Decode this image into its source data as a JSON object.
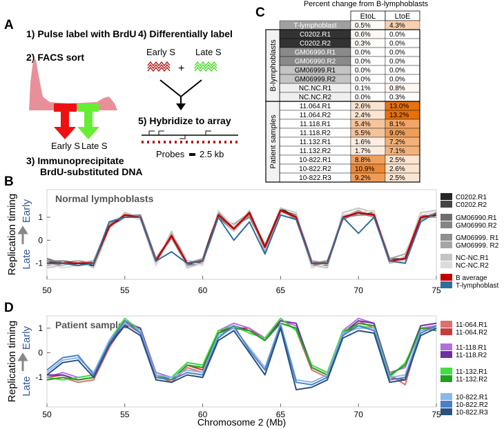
{
  "panel_a": {
    "label": "A",
    "step1": "1) Pulse label with BrdU",
    "step2": "2) FACS sort",
    "step3a": "3) Immunoprecipitate",
    "step3b": "BrdU-substituted DNA",
    "step4": "4) Differentially label",
    "step5": "5) Hybridize to array",
    "sort_early": "Early S",
    "sort_late": "Late S",
    "label_early": "Early S",
    "plus": "+",
    "label_late": "Late S",
    "probes": "Probes",
    "probe_size": "2.5 kb"
  },
  "table": {
    "label": "C",
    "title": "Percent change from B-lymphoblasts",
    "columns": [
      "EtoL",
      "LtoE"
    ],
    "top_row": [
      "T-lymphoblast",
      "0.5%",
      "4.3%"
    ],
    "groups": [
      {
        "label": "B-lymphoblasts",
        "rows": [
          [
            "C0202.R1",
            "0.6%",
            "0.0%"
          ],
          [
            "C0202.R2",
            "0.3%",
            "0.0%"
          ],
          [
            "GM06990.R1",
            "0.0%",
            "0.0%"
          ],
          [
            "GM06990.R2",
            "0.0%",
            "0.0%"
          ],
          [
            "GM06999.R1",
            "0.0%",
            "0.0%"
          ],
          [
            "GM06999.R2",
            "0.0%",
            "0.0%"
          ],
          [
            "NC.NC.R1",
            "0.1%",
            "0.8%"
          ],
          [
            "NC.NC.R2",
            "0.0%",
            "0.3%"
          ]
        ]
      },
      {
        "label": "Patient samples",
        "rows": [
          [
            "11.064.R1",
            "2.6%",
            "13.0%"
          ],
          [
            "11.064.R2",
            "2.4%",
            "13.2%"
          ],
          [
            "11.118.R1",
            "5.4%",
            "8.1%"
          ],
          [
            "11.118.R2",
            "5.5%",
            "9.0%"
          ],
          [
            "11.132.R1",
            "1.6%",
            "7.2%"
          ],
          [
            "11.132.R2",
            "1.7%",
            "7.1%"
          ],
          [
            "10-822.R1",
            "8.8%",
            "2.5%"
          ],
          [
            "10-822.R2",
            "10.9%",
            "2.6%"
          ],
          [
            "10-822.R3",
            "9.2%",
            "2.5%"
          ]
        ]
      }
    ]
  },
  "chart_data": [
    {
      "type": "line",
      "panel": "B",
      "title": "Normal lymphoblasts",
      "y_label": "Replication timing",
      "y_late": "Late",
      "y_early": "Early",
      "x": [
        50,
        51,
        52,
        53,
        54,
        55,
        56,
        57,
        58,
        59,
        60,
        61,
        62,
        63,
        64,
        65,
        66,
        67,
        68,
        69,
        70,
        71,
        72,
        73,
        74,
        75
      ],
      "xlim": [
        50,
        75
      ],
      "xticks": [
        50,
        55,
        60,
        65,
        70,
        75
      ],
      "ylim": [
        -1.7,
        2.2
      ],
      "yticks": [
        -1,
        0,
        1
      ],
      "series": [
        {
          "name": "C0202.R1",
          "color": "#262626",
          "values": [
            -1.0,
            -0.9,
            -1.0,
            -1.1,
            0.7,
            1.1,
            1.0,
            -0.9,
            0.1,
            -1.0,
            -0.9,
            1.1,
            0.6,
            1.2,
            -0.3,
            1.4,
            1.0,
            -1.0,
            -1.1,
            1.0,
            1.3,
            1.0,
            -0.9,
            -0.8,
            1.0,
            1.1
          ]
        },
        {
          "name": "C0202.R2",
          "color": "#454545",
          "values": [
            -0.9,
            -1.0,
            -0.9,
            -1.0,
            0.6,
            1.0,
            1.1,
            -0.8,
            0.2,
            -1.1,
            -0.8,
            1.2,
            0.5,
            1.1,
            -0.2,
            1.3,
            1.1,
            -0.9,
            -1.0,
            1.1,
            1.2,
            1.1,
            -1.0,
            -0.7,
            0.9,
            1.2
          ]
        },
        {
          "name": "GM06990.R1",
          "color": "#6e6e6e",
          "values": [
            -0.8,
            -1.0,
            -1.0,
            -0.9,
            0.7,
            1.1,
            0.9,
            -0.9,
            0.3,
            -0.9,
            -1.0,
            1.0,
            0.4,
            1.2,
            -0.4,
            1.2,
            1.0,
            -1.1,
            -1.0,
            1.0,
            1.1,
            1.2,
            -0.8,
            -0.8,
            1.1,
            1.0
          ]
        },
        {
          "name": "GM06990.R2",
          "color": "#858585",
          "values": [
            -1.0,
            -1.1,
            -0.9,
            -1.0,
            0.5,
            1.2,
            1.0,
            -1.0,
            0.2,
            -1.0,
            -0.9,
            1.1,
            0.6,
            1.0,
            -0.3,
            1.3,
            0.9,
            -1.0,
            -0.9,
            0.9,
            1.2,
            1.0,
            -0.9,
            -0.9,
            1.0,
            1.1
          ]
        },
        {
          "name": "GM06999. R1",
          "color": "#8f8f8f",
          "values": [
            -0.9,
            -0.9,
            -1.1,
            -1.0,
            0.6,
            1.1,
            1.1,
            -0.8,
            0.1,
            -1.1,
            -1.0,
            1.2,
            0.5,
            1.1,
            -0.2,
            1.2,
            1.1,
            -1.0,
            -1.1,
            1.1,
            1.1,
            1.1,
            -1.0,
            -0.8,
            0.9,
            1.2
          ]
        },
        {
          "name": "GM06999. R2",
          "color": "#a6a6a6",
          "values": [
            -1.1,
            -1.0,
            -1.0,
            -0.9,
            0.7,
            1.0,
            1.0,
            -0.9,
            0.3,
            -1.0,
            -0.8,
            1.0,
            0.7,
            1.2,
            -0.5,
            1.3,
            1.0,
            -0.9,
            -1.0,
            1.0,
            1.3,
            1.0,
            -0.8,
            -0.6,
            1.0,
            1.0
          ]
        },
        {
          "name": "NC-NC.R1",
          "color": "#c4c4c4",
          "values": [
            -1.2,
            -1.1,
            -0.9,
            -1.2,
            0.5,
            1.2,
            1.0,
            -1.0,
            0.4,
            -1.2,
            -1.0,
            1.1,
            0.4,
            1.3,
            -0.4,
            1.4,
            1.2,
            -1.1,
            -1.2,
            1.2,
            1.4,
            1.2,
            -1.0,
            -0.7,
            1.2,
            1.3
          ]
        },
        {
          "name": "NC-NC.R2",
          "color": "#dcdcdc",
          "values": [
            -1.0,
            -1.2,
            -1.1,
            -1.0,
            0.8,
            1.1,
            0.9,
            -1.1,
            0.2,
            -0.9,
            -1.1,
            1.3,
            0.6,
            1.2,
            -0.3,
            1.2,
            1.0,
            -1.2,
            -1.0,
            1.1,
            1.2,
            1.3,
            -0.9,
            -0.9,
            1.1,
            1.2
          ]
        },
        {
          "name": "B average",
          "color": "#c00000",
          "values": [
            -1.0,
            -1.0,
            -1.0,
            -1.0,
            0.6,
            1.1,
            1.0,
            -0.9,
            0.2,
            -1.0,
            -0.9,
            1.1,
            0.5,
            1.2,
            -0.3,
            1.3,
            1.0,
            -1.0,
            -1.0,
            1.0,
            1.2,
            1.1,
            -0.9,
            -0.8,
            1.0,
            1.1
          ]
        },
        {
          "name": "T-lymphoblast",
          "color": "#2e6e9e",
          "values": [
            -1.0,
            -1.0,
            -1.1,
            -1.0,
            0.8,
            1.0,
            1.0,
            -0.9,
            -0.5,
            -1.0,
            -0.9,
            1.0,
            0.0,
            0.8,
            -0.6,
            1.1,
            0.9,
            -1.0,
            -1.0,
            1.0,
            0.3,
            1.0,
            -0.9,
            -1.0,
            0.8,
            1.2
          ]
        }
      ]
    },
    {
      "type": "line",
      "panel": "D",
      "title": "Patient samples",
      "y_label": "Replication timing",
      "y_late": "Late",
      "y_early": "Early",
      "x_label": "Chromosome 2 (Mb)",
      "x": [
        50,
        51,
        52,
        53,
        54,
        55,
        56,
        57,
        58,
        59,
        60,
        61,
        62,
        63,
        64,
        65,
        66,
        67,
        68,
        69,
        70,
        71,
        72,
        73,
        74,
        75
      ],
      "xlim": [
        50,
        75
      ],
      "xticks": [
        50,
        55,
        60,
        65,
        70,
        75
      ],
      "ylim": [
        -2.2,
        1.5
      ],
      "yticks": [
        -1,
        0,
        1
      ],
      "series": [
        {
          "name": "11-064.R1",
          "color": "#e07070",
          "values": [
            -1.1,
            -1.0,
            -1.2,
            -1.1,
            0.2,
            1.2,
            0.8,
            -0.9,
            -1.2,
            -0.6,
            -0.8,
            0.8,
            1.1,
            0.9,
            0.6,
            1.4,
            0.9,
            -0.7,
            -1.0,
            0.8,
            1.3,
            1.0,
            -0.9,
            -1.3,
            0.9,
            1.1
          ]
        },
        {
          "name": "11-064.R2",
          "color": "#c83c3c",
          "values": [
            -1.0,
            -0.9,
            -1.1,
            -1.0,
            0.3,
            1.3,
            0.9,
            -1.0,
            -1.1,
            -0.5,
            -0.7,
            0.9,
            1.0,
            1.0,
            0.5,
            1.2,
            1.0,
            -0.6,
            -0.9,
            0.7,
            1.2,
            1.1,
            -1.0,
            -1.1,
            1.0,
            1.0
          ]
        },
        {
          "name": "11-118.R1",
          "color": "#b070e0",
          "values": [
            -1.0,
            -0.8,
            -1.0,
            -0.9,
            0.4,
            1.3,
            1.0,
            -0.8,
            -1.0,
            -0.4,
            -0.5,
            0.9,
            1.2,
            1.0,
            0.6,
            1.3,
            1.1,
            -0.5,
            -0.8,
            0.9,
            1.4,
            1.2,
            -0.8,
            -0.6,
            1.0,
            1.1
          ]
        },
        {
          "name": "11-118.R2",
          "color": "#7030a0",
          "values": [
            -0.9,
            -0.9,
            -1.1,
            -1.0,
            0.3,
            1.2,
            1.0,
            -0.9,
            -1.1,
            -0.5,
            -0.6,
            0.8,
            1.1,
            0.9,
            0.5,
            1.3,
            1.2,
            -0.6,
            -0.9,
            0.8,
            1.3,
            1.2,
            -0.9,
            -0.5,
            1.1,
            1.2
          ]
        },
        {
          "name": "11-132.R1",
          "color": "#44dd44",
          "values": [
            -1.0,
            -1.1,
            -1.0,
            -0.9,
            0.5,
            1.4,
            0.9,
            -1.0,
            -1.0,
            -0.4,
            -0.5,
            0.9,
            1.1,
            0.8,
            0.6,
            1.4,
            0.9,
            -0.5,
            -0.8,
            0.9,
            1.1,
            1.0,
            -1.0,
            -0.4,
            0.9,
            1.0
          ]
        },
        {
          "name": "11-132.R2",
          "color": "#22a022",
          "values": [
            -1.1,
            -1.0,
            -1.1,
            -1.0,
            0.4,
            1.3,
            0.8,
            -0.9,
            -1.1,
            -0.5,
            -0.6,
            0.8,
            1.0,
            0.9,
            0.5,
            1.2,
            1.0,
            -0.6,
            -0.9,
            0.8,
            1.2,
            1.1,
            -0.9,
            -0.5,
            1.0,
            0.9
          ]
        },
        {
          "name": "10-822.R1",
          "color": "#88b8e8",
          "values": [
            -0.8,
            -0.3,
            -0.2,
            -0.8,
            0.5,
            1.2,
            0.9,
            -0.9,
            -1.0,
            -0.7,
            -0.8,
            0.7,
            1.0,
            0.2,
            -0.6,
            1.2,
            -1.1,
            -1.2,
            -0.9,
            0.8,
            1.0,
            1.0,
            -1.0,
            -0.9,
            0.9,
            1.0
          ]
        },
        {
          "name": "10-822.R2",
          "color": "#4a80c8",
          "values": [
            -0.7,
            -0.2,
            -0.1,
            -0.9,
            0.4,
            1.3,
            0.8,
            -1.0,
            -1.1,
            -0.8,
            -0.9,
            0.6,
            1.1,
            0.1,
            -0.7,
            1.1,
            -1.2,
            -1.3,
            -1.0,
            0.7,
            1.1,
            0.9,
            -1.1,
            -1.0,
            0.8,
            1.1
          ]
        },
        {
          "name": "10-822.R3",
          "color": "#2a5080",
          "values": [
            -0.9,
            -0.4,
            -0.3,
            -1.0,
            0.3,
            1.1,
            0.7,
            -1.1,
            -1.2,
            -0.9,
            -1.0,
            0.5,
            0.9,
            0.0,
            -0.9,
            1.0,
            -1.5,
            -1.4,
            -1.1,
            0.6,
            0.9,
            0.8,
            -1.2,
            -1.1,
            0.7,
            1.0
          ]
        }
      ]
    }
  ]
}
